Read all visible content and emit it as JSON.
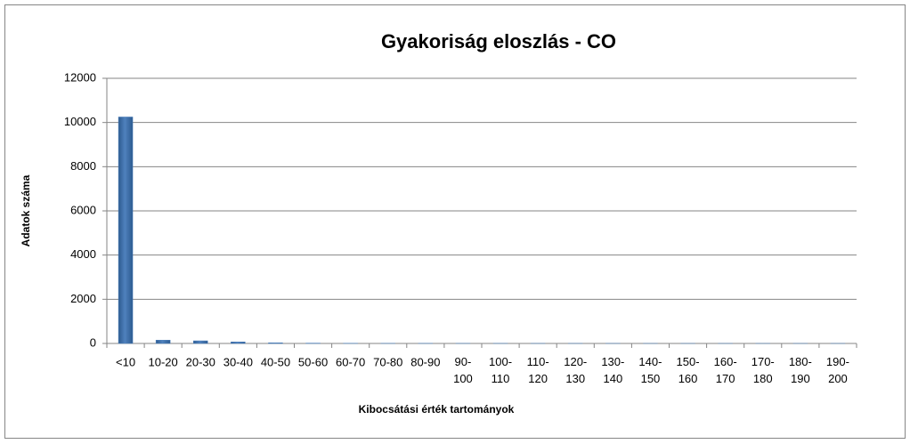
{
  "chart_data": {
    "type": "bar",
    "title": "Gyakoriság eloszlás - CO",
    "x_label": "Kibocsátási  érték tartományok",
    "y_label": "Adatok száma",
    "categories": [
      "<10",
      "10-20",
      "20-30",
      "30-40",
      "40-50",
      "50-60",
      "60-70",
      "70-80",
      "80-90",
      "90-100",
      "100-110",
      "110-120",
      "120-130",
      "130-140",
      "140-150",
      "150-160",
      "160-170",
      "170-180",
      "180-190",
      "190-200"
    ],
    "values": [
      10250,
      150,
      120,
      70,
      30,
      15,
      8,
      5,
      5,
      3,
      3,
      2,
      2,
      2,
      1,
      1,
      1,
      1,
      1,
      1
    ],
    "color": "#4f81bd",
    "ylim": [
      0,
      12000
    ],
    "yticks": [
      0,
      2000,
      4000,
      6000,
      8000,
      10000,
      12000
    ],
    "grid": true
  }
}
